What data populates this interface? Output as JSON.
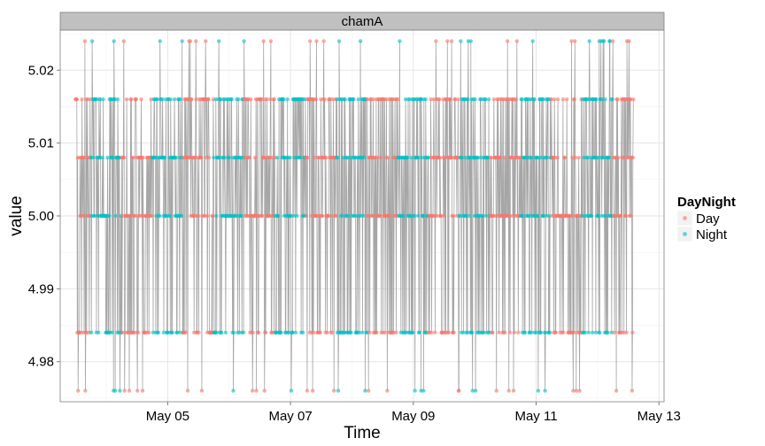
{
  "chart_data": {
    "type": "line",
    "panel": "chamA",
    "xlabel": "Time",
    "ylabel": "value",
    "x_ticks": [
      "May 05",
      "May 07",
      "May 09",
      "May 11",
      "May 13"
    ],
    "y_ticks": [
      "4.98",
      "4.99",
      "5.00",
      "5.01",
      "5.02"
    ],
    "xlim": [
      "2014-05-03T06:00",
      "2014-05-13T02:00"
    ],
    "ylim": [
      4.9745,
      5.0255
    ],
    "value_levels": [
      4.976,
      4.984,
      5.0,
      5.008,
      5.016,
      5.024
    ],
    "time_range": [
      "2014-05-03T12:00",
      "2014-05-12T14:00"
    ],
    "series": [
      {
        "name": "Day",
        "color": "#F8766D"
      },
      {
        "name": "Night",
        "color": "#00BFC4"
      }
    ],
    "day_start_hour": 6,
    "night_start_hour": 18,
    "line_color": "#A6A6A6",
    "legend": {
      "title": "DayNight",
      "position": "right"
    },
    "grid": true,
    "background": "#ffffff",
    "strip_fill": "#C0C0C0"
  }
}
